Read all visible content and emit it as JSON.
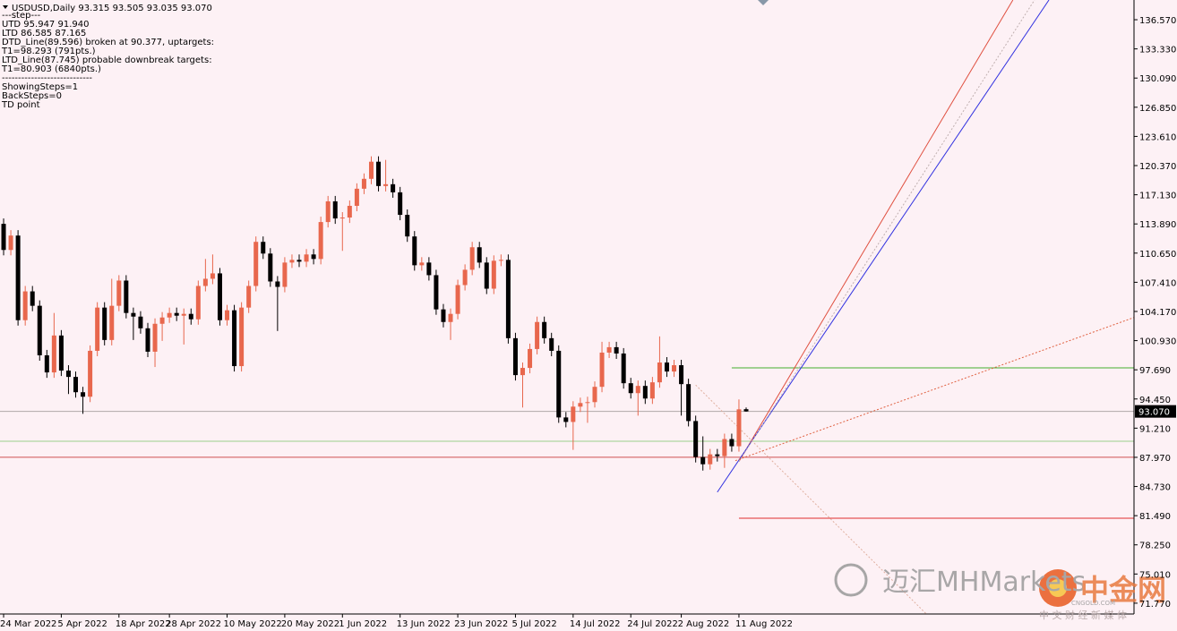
{
  "chart_data": {
    "type": "candlestick",
    "title": "USDUSD,Daily  93.315 93.505 93.035 93.070",
    "indicator_text": [
      "---step---",
      "UTD 95.947  91.940",
      "LTD 86.585  87.165",
      "DTD_Line(89.596) broken at 90.377, uptargets:",
      "T1=98.293 (791pts.)",
      "LTD_Line(87.745) probable downbreak targets:",
      "T1=80.903 (6840pts.)",
      "----------------------------",
      "ShowingSteps=1",
      "BackSteps=0",
      "TD point"
    ],
    "categories": [
      "24 Mar 2022",
      null,
      null,
      null,
      null,
      null,
      null,
      null,
      "5 Apr 2022",
      null,
      null,
      null,
      null,
      null,
      null,
      null,
      "18 Apr 2022",
      null,
      null,
      null,
      null,
      null,
      null,
      "28 Apr 2022",
      null,
      null,
      null,
      null,
      null,
      null,
      null,
      "10 May 2022",
      null,
      null,
      null,
      null,
      null,
      null,
      null,
      "20 May 2022",
      null,
      null,
      null,
      null,
      null,
      null,
      null,
      "1 Jun 2022",
      null,
      null,
      null,
      null,
      null,
      null,
      null,
      "13 Jun 2022",
      null,
      null,
      null,
      null,
      null,
      null,
      null,
      "23 Jun 2022",
      null,
      null,
      null,
      null,
      null,
      null,
      null,
      "5 Jul 2022",
      null,
      null,
      null,
      null,
      null,
      null,
      null,
      "14 Jul 2022",
      null,
      null,
      null,
      null,
      null,
      null,
      null,
      "24 Jul 2022",
      null,
      null,
      null,
      null,
      null,
      null,
      "2 Aug 2022",
      null,
      null,
      null,
      null,
      null,
      null,
      null,
      "11 Aug 2022",
      null
    ],
    "open": [
      113.9,
      111.0,
      112.6,
      103.2,
      106.4,
      104.8,
      99.3,
      97.4,
      101.5,
      97.6,
      96.9,
      95.2,
      94.7,
      99.8,
      104.6,
      101.0,
      104.8,
      107.6,
      104.0,
      103.6,
      102.3,
      99.7,
      102.8,
      103.5,
      104.0,
      103.7,
      103.9,
      103.3,
      107.0,
      107.8,
      108.4,
      103.2,
      104.3,
      98.1,
      104.6,
      107.0,
      111.9,
      110.6,
      107.5,
      106.9,
      109.6,
      109.9,
      109.7,
      110.5,
      110.0,
      114.1,
      116.4,
      114.5,
      114.6,
      115.9,
      117.8,
      118.9,
      120.8,
      118.1,
      118.3,
      117.4,
      114.9,
      112.5,
      109.3,
      109.6,
      108.2,
      104.4,
      103.0,
      103.9,
      107.1,
      108.8,
      111.3,
      109.6,
      106.7,
      109.8,
      109.9,
      101.2,
      97.1,
      97.9,
      100.0,
      103.0,
      101.2,
      99.8,
      92.4,
      91.9,
      93.6,
      94.0,
      94.1,
      95.8,
      99.6,
      100.2,
      99.5,
      96.2,
      95.1,
      95.9,
      94.5,
      96.3,
      98.5,
      97.5,
      98.2,
      96.1,
      92.0,
      88.0,
      87.2,
      88.3,
      88.1,
      90.0,
      89.2,
      93.315
    ],
    "high": [
      114.5,
      113.2,
      113.2,
      107.0,
      107.0,
      105.4,
      99.9,
      104.0,
      102.1,
      98.2,
      97.5,
      95.8,
      100.4,
      105.2,
      105.2,
      107.8,
      108.2,
      108.2,
      104.6,
      104.2,
      102.9,
      103.4,
      104.1,
      104.6,
      104.6,
      104.5,
      104.5,
      107.6,
      110.0,
      110.5,
      109.0,
      104.9,
      104.9,
      105.2,
      107.6,
      112.5,
      112.5,
      111.2,
      108.1,
      110.2,
      110.5,
      110.5,
      111.1,
      111.1,
      114.7,
      117.0,
      117.0,
      115.2,
      116.5,
      118.4,
      119.5,
      121.4,
      121.4,
      121.0,
      118.9,
      118.0,
      115.5,
      113.1,
      110.2,
      110.2,
      108.8,
      105.0,
      104.5,
      107.7,
      109.4,
      111.9,
      111.9,
      110.2,
      110.4,
      110.5,
      110.5,
      101.8,
      98.5,
      100.6,
      103.6,
      103.6,
      101.8,
      100.4,
      93.0,
      94.2,
      94.6,
      94.7,
      96.4,
      100.8,
      100.8,
      100.8,
      100.1,
      96.8,
      96.5,
      96.5,
      96.9,
      101.4,
      99.1,
      98.8,
      98.8,
      96.7,
      92.6,
      90.3,
      88.9,
      88.9,
      90.6,
      90.6,
      94.4,
      93.505
    ],
    "low": [
      110.4,
      110.4,
      102.6,
      102.6,
      104.2,
      98.7,
      96.8,
      96.8,
      97.0,
      95.0,
      94.6,
      92.8,
      94.1,
      99.2,
      100.4,
      100.4,
      104.2,
      103.4,
      101.0,
      101.7,
      99.1,
      98.0,
      100.9,
      102.9,
      103.1,
      100.5,
      102.7,
      102.7,
      106.4,
      107.2,
      102.6,
      102.6,
      97.5,
      97.5,
      104.0,
      106.4,
      110.0,
      106.9,
      102.0,
      106.3,
      109.0,
      109.1,
      109.1,
      109.4,
      109.4,
      113.5,
      113.9,
      110.9,
      114.0,
      115.3,
      117.2,
      118.3,
      117.5,
      117.5,
      116.8,
      114.3,
      111.9,
      108.7,
      108.7,
      107.6,
      103.8,
      102.4,
      101.0,
      103.3,
      106.5,
      108.2,
      109.0,
      106.1,
      106.1,
      109.2,
      100.6,
      96.5,
      93.5,
      97.3,
      99.4,
      100.6,
      99.2,
      91.8,
      91.3,
      88.8,
      93.0,
      91.8,
      93.5,
      95.2,
      99.0,
      98.9,
      95.6,
      94.5,
      92.6,
      93.9,
      93.9,
      95.7,
      96.9,
      96.9,
      92.6,
      91.4,
      87.4,
      86.5,
      86.6,
      87.5,
      86.8,
      88.6,
      88.6,
      93.035
    ],
    "close": [
      111.0,
      112.6,
      103.2,
      106.4,
      104.8,
      99.3,
      97.4,
      101.5,
      97.6,
      96.9,
      95.2,
      94.7,
      99.8,
      104.6,
      101.0,
      104.8,
      107.6,
      104.0,
      103.6,
      102.3,
      99.7,
      102.8,
      103.5,
      104.0,
      103.7,
      103.9,
      103.3,
      107.0,
      107.8,
      108.4,
      103.2,
      104.3,
      98.1,
      104.6,
      107.0,
      111.9,
      110.6,
      107.5,
      106.9,
      109.6,
      109.9,
      109.7,
      110.5,
      110.0,
      114.1,
      116.4,
      114.5,
      114.6,
      115.9,
      117.8,
      118.9,
      120.8,
      118.1,
      118.3,
      117.4,
      114.9,
      112.5,
      109.3,
      109.6,
      108.2,
      104.4,
      103.0,
      103.9,
      107.1,
      108.8,
      111.3,
      109.6,
      106.7,
      109.8,
      109.9,
      101.2,
      97.1,
      97.9,
      100.0,
      103.0,
      101.2,
      99.8,
      92.4,
      91.9,
      93.6,
      94.0,
      94.1,
      95.8,
      99.6,
      100.2,
      99.5,
      96.2,
      95.1,
      95.9,
      94.5,
      96.3,
      98.5,
      97.5,
      98.2,
      96.1,
      92.0,
      88.0,
      87.2,
      88.3,
      88.1,
      90.0,
      89.2,
      93.3,
      93.07
    ],
    "up_color": "#e8674d",
    "down_color": "#000000",
    "xlim": [
      -0.5,
      156.8
    ],
    "ylim": [
      70.57,
      138.76
    ],
    "yticks": [
      {
        "value": 136.57,
        "label": "136.570"
      },
      {
        "value": 133.33,
        "label": "133.330"
      },
      {
        "value": 130.09,
        "label": "130.090"
      },
      {
        "value": 126.85,
        "label": "126.850"
      },
      {
        "value": 123.61,
        "label": "123.610"
      },
      {
        "value": 120.37,
        "label": "120.370"
      },
      {
        "value": 117.13,
        "label": "117.130"
      },
      {
        "value": 113.89,
        "label": "113.890"
      },
      {
        "value": 110.65,
        "label": "110.650"
      },
      {
        "value": 107.41,
        "label": "107.410"
      },
      {
        "value": 104.17,
        "label": "104.170"
      },
      {
        "value": 100.93,
        "label": "100.930"
      },
      {
        "value": 97.69,
        "label": "97.690"
      },
      {
        "value": 94.45,
        "label": "94.450"
      },
      {
        "value": 91.21,
        "label": "91.210"
      },
      {
        "value": 87.97,
        "label": "87.970"
      },
      {
        "value": 84.73,
        "label": "84.730"
      },
      {
        "value": 81.49,
        "label": "81.490"
      },
      {
        "value": 78.25,
        "label": "78.250"
      },
      {
        "value": 75.01,
        "label": "75.010"
      },
      {
        "value": 71.77,
        "label": "71.770"
      }
    ],
    "current_price": {
      "value": 93.07,
      "label": "93.070"
    },
    "hlines": [
      {
        "value": 93.07,
        "color": "#b0a8a8"
      },
      {
        "value": 89.75,
        "color": "#9ad08a"
      },
      {
        "value": 87.98,
        "color": "#d05050"
      },
      {
        "value": 97.9,
        "color": "#44b030",
        "x_start": 101
      },
      {
        "value": 81.2,
        "color": "#e03030",
        "x_start": 102
      }
    ],
    "trendlines": [
      {
        "x": [
          102,
          140
        ],
        "y": [
          87.5,
          138.76
        ],
        "color": "#e05040",
        "dashed": false
      },
      {
        "x": [
          99,
          145
        ],
        "y": [
          84.1,
          138.76
        ],
        "color": "#3030e0",
        "dashed": false
      },
      {
        "x": [
          102,
          143
        ],
        "y": [
          87.5,
          138.76
        ],
        "color": "#c0b0b0",
        "dashed": true
      },
      {
        "x": [
          101.5,
          156.8
        ],
        "y": [
          87.6,
          103.5
        ],
        "color": "#e06040",
        "dashed": true
      },
      {
        "x": [
          96,
          128
        ],
        "y": [
          96.0,
          70.57
        ],
        "color": "#e0b0a0",
        "dashed": true
      }
    ],
    "watermark": {
      "logo_text": "迈汇MHMarkets",
      "brand": "中金网",
      "site": "CNGOLD.COM",
      "tagline": "中 文 财 经 新 媒 体"
    }
  }
}
